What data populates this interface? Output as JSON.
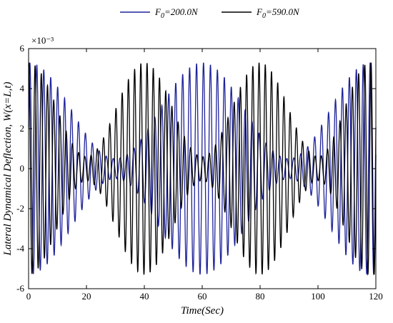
{
  "chart_data": {
    "type": "line",
    "title": "",
    "xlabel": "Time(Sec)",
    "ylabel": "Lateral Dynamical Deflection, W(x=L,t)",
    "y_scale_label": "×10⁻³",
    "xlim": [
      0,
      120
    ],
    "ylim": [
      -6,
      6
    ],
    "y_multiplier": 0.001,
    "grid": false,
    "legend_position": "top-center",
    "x_ticks": [
      0,
      20,
      40,
      60,
      80,
      100,
      120
    ],
    "x_tick_labels": [
      "0",
      "20",
      "40",
      "60",
      "80",
      "100",
      "120"
    ],
    "y_ticks": [
      6,
      4,
      2,
      0,
      -2,
      -4,
      -6
    ],
    "y_tick_labels": [
      "6",
      "4",
      "2",
      "0",
      "-2",
      "-4",
      "-6"
    ],
    "series": [
      {
        "name": "F0=200.0N",
        "legend_base": "F",
        "legend_sub": "0",
        "legend_rest": "=200.0N",
        "color": "#1f239a",
        "oscillation_period_sec": 2.4,
        "envelope_peak_times_sec": [
          0,
          60,
          118
        ],
        "envelope_min_times_sec": [
          30,
          90
        ],
        "envelope_max": 5.3,
        "envelope_min": 0.5
      },
      {
        "name": "F0=590.0N",
        "legend_base": "F",
        "legend_sub": "0",
        "legend_rest": "=590.0N",
        "color": "#000000",
        "oscillation_period_sec": 2.15,
        "envelope_peak_times_sec": [
          0,
          40,
          80,
          118
        ],
        "envelope_min_times_sec": [
          20,
          60,
          100
        ],
        "envelope_max": 5.3,
        "envelope_min": 0.6
      }
    ]
  }
}
